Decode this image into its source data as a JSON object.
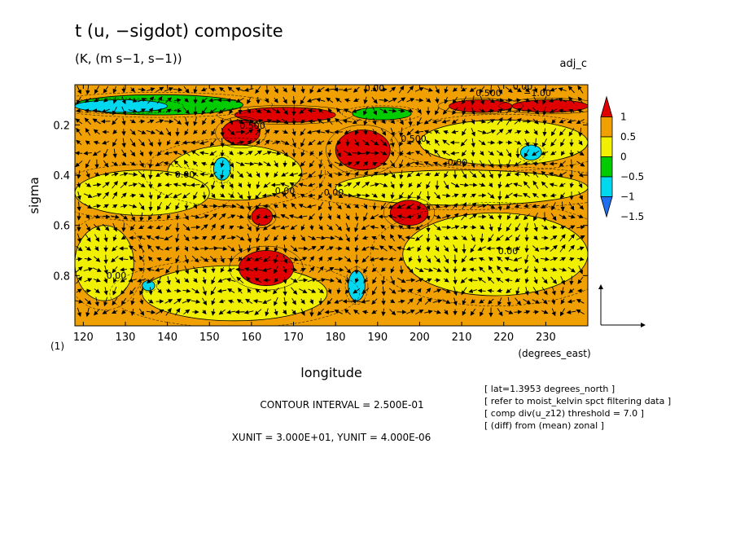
{
  "chart_data": {
    "type": "heatmap",
    "title": "t (u, −sigdot) composite",
    "subtitle": "(K, (m s−1, s−1))",
    "tag": "adj_c",
    "xlabel": "longitude",
    "xunits": "(degrees_east)",
    "ylabel": "sigma",
    "yunits_marker": "(1)",
    "xlim": [
      118,
      240
    ],
    "ylim": [
      0.04,
      1.0
    ],
    "x_ticks": [
      120,
      130,
      140,
      150,
      160,
      170,
      180,
      190,
      200,
      210,
      220,
      230
    ],
    "y_ticks": [
      0.2,
      0.4,
      0.6,
      0.8
    ],
    "colorbar": {
      "levels": [
        -1.5,
        -1,
        -0.5,
        0,
        0.5,
        1
      ],
      "tick_labels": [
        "1",
        "0.5",
        "0",
        "−0.5",
        "−1",
        "−1.5"
      ],
      "colors": [
        "#1e6ef0",
        "#00d8f0",
        "#00cc00",
        "#f0f000",
        "#f0a000",
        "#e00000"
      ]
    },
    "contour_labels": [
      "0.00",
      "0.500",
      "0.00",
      "0.500",
      "0.00",
      "0.00",
      "0.00",
      "0.00",
      "0.00",
      "0.00",
      "0.500",
      "−1.00"
    ],
    "regions": [
      {
        "level": 0.25,
        "x0": 118,
        "x1": 240,
        "y0": 0.04,
        "y1": 1.0
      },
      {
        "level": -0.25,
        "x0": 118,
        "x1": 132,
        "y0": 0.6,
        "y1": 0.9
      },
      {
        "level": -0.25,
        "x0": 134,
        "x1": 178,
        "y0": 0.76,
        "y1": 0.98
      },
      {
        "level": -0.25,
        "x0": 196,
        "x1": 240,
        "y0": 0.55,
        "y1": 0.88
      },
      {
        "level": -0.25,
        "x0": 140,
        "x1": 172,
        "y0": 0.28,
        "y1": 0.5
      },
      {
        "level": -0.25,
        "x0": 180,
        "x1": 240,
        "y0": 0.38,
        "y1": 0.52
      },
      {
        "level": -0.25,
        "x0": 118,
        "x1": 150,
        "y0": 0.38,
        "y1": 0.56
      },
      {
        "level": -0.25,
        "x0": 200,
        "x1": 240,
        "y0": 0.18,
        "y1": 0.36
      },
      {
        "level": 0.75,
        "x0": 153,
        "x1": 162,
        "y0": 0.18,
        "y1": 0.28
      },
      {
        "level": 0.75,
        "x0": 180,
        "x1": 193,
        "y0": 0.22,
        "y1": 0.38
      },
      {
        "level": 0.75,
        "x0": 193,
        "x1": 202,
        "y0": 0.5,
        "y1": 0.6
      },
      {
        "level": 0.75,
        "x0": 157,
        "x1": 170,
        "y0": 0.7,
        "y1": 0.84
      },
      {
        "level": 0.75,
        "x0": 160,
        "x1": 165,
        "y0": 0.53,
        "y1": 0.6
      },
      {
        "level": 0.75,
        "x0": 207,
        "x1": 222,
        "y0": 0.1,
        "y1": 0.15
      },
      {
        "level": 1.25,
        "x0": 156,
        "x1": 180,
        "y0": 0.13,
        "y1": 0.19
      },
      {
        "level": 1.25,
        "x0": 222,
        "x1": 240,
        "y0": 0.1,
        "y1": 0.15
      },
      {
        "level": -0.75,
        "x0": 118,
        "x1": 158,
        "y0": 0.08,
        "y1": 0.16
      },
      {
        "level": -0.75,
        "x0": 184,
        "x1": 198,
        "y0": 0.13,
        "y1": 0.18
      },
      {
        "level": -1.25,
        "x0": 118,
        "x1": 140,
        "y0": 0.1,
        "y1": 0.15
      },
      {
        "level": -1.25,
        "x0": 151,
        "x1": 155,
        "y0": 0.33,
        "y1": 0.42
      },
      {
        "level": -1.25,
        "x0": 183,
        "x1": 187,
        "y0": 0.78,
        "y1": 0.9
      },
      {
        "level": -1.25,
        "x0": 134,
        "x1": 137,
        "y0": 0.82,
        "y1": 0.86
      },
      {
        "level": -1.25,
        "x0": 224,
        "x1": 229,
        "y0": 0.28,
        "y1": 0.34
      }
    ]
  },
  "info_panel": {
    "contour_interval": "CONTOUR INTERVAL = 2.500E-01",
    "units": "XUNIT = 3.000E+01, YUNIT = 4.000E-06",
    "notes": [
      "[ lat=1.3953 degrees_north ]",
      "[ refer to moist_kelvin spct filtering data ]",
      "[ comp div(u_z12) threshold = 7.0 ]",
      "[ (diff) from (mean) zonal ]"
    ]
  }
}
